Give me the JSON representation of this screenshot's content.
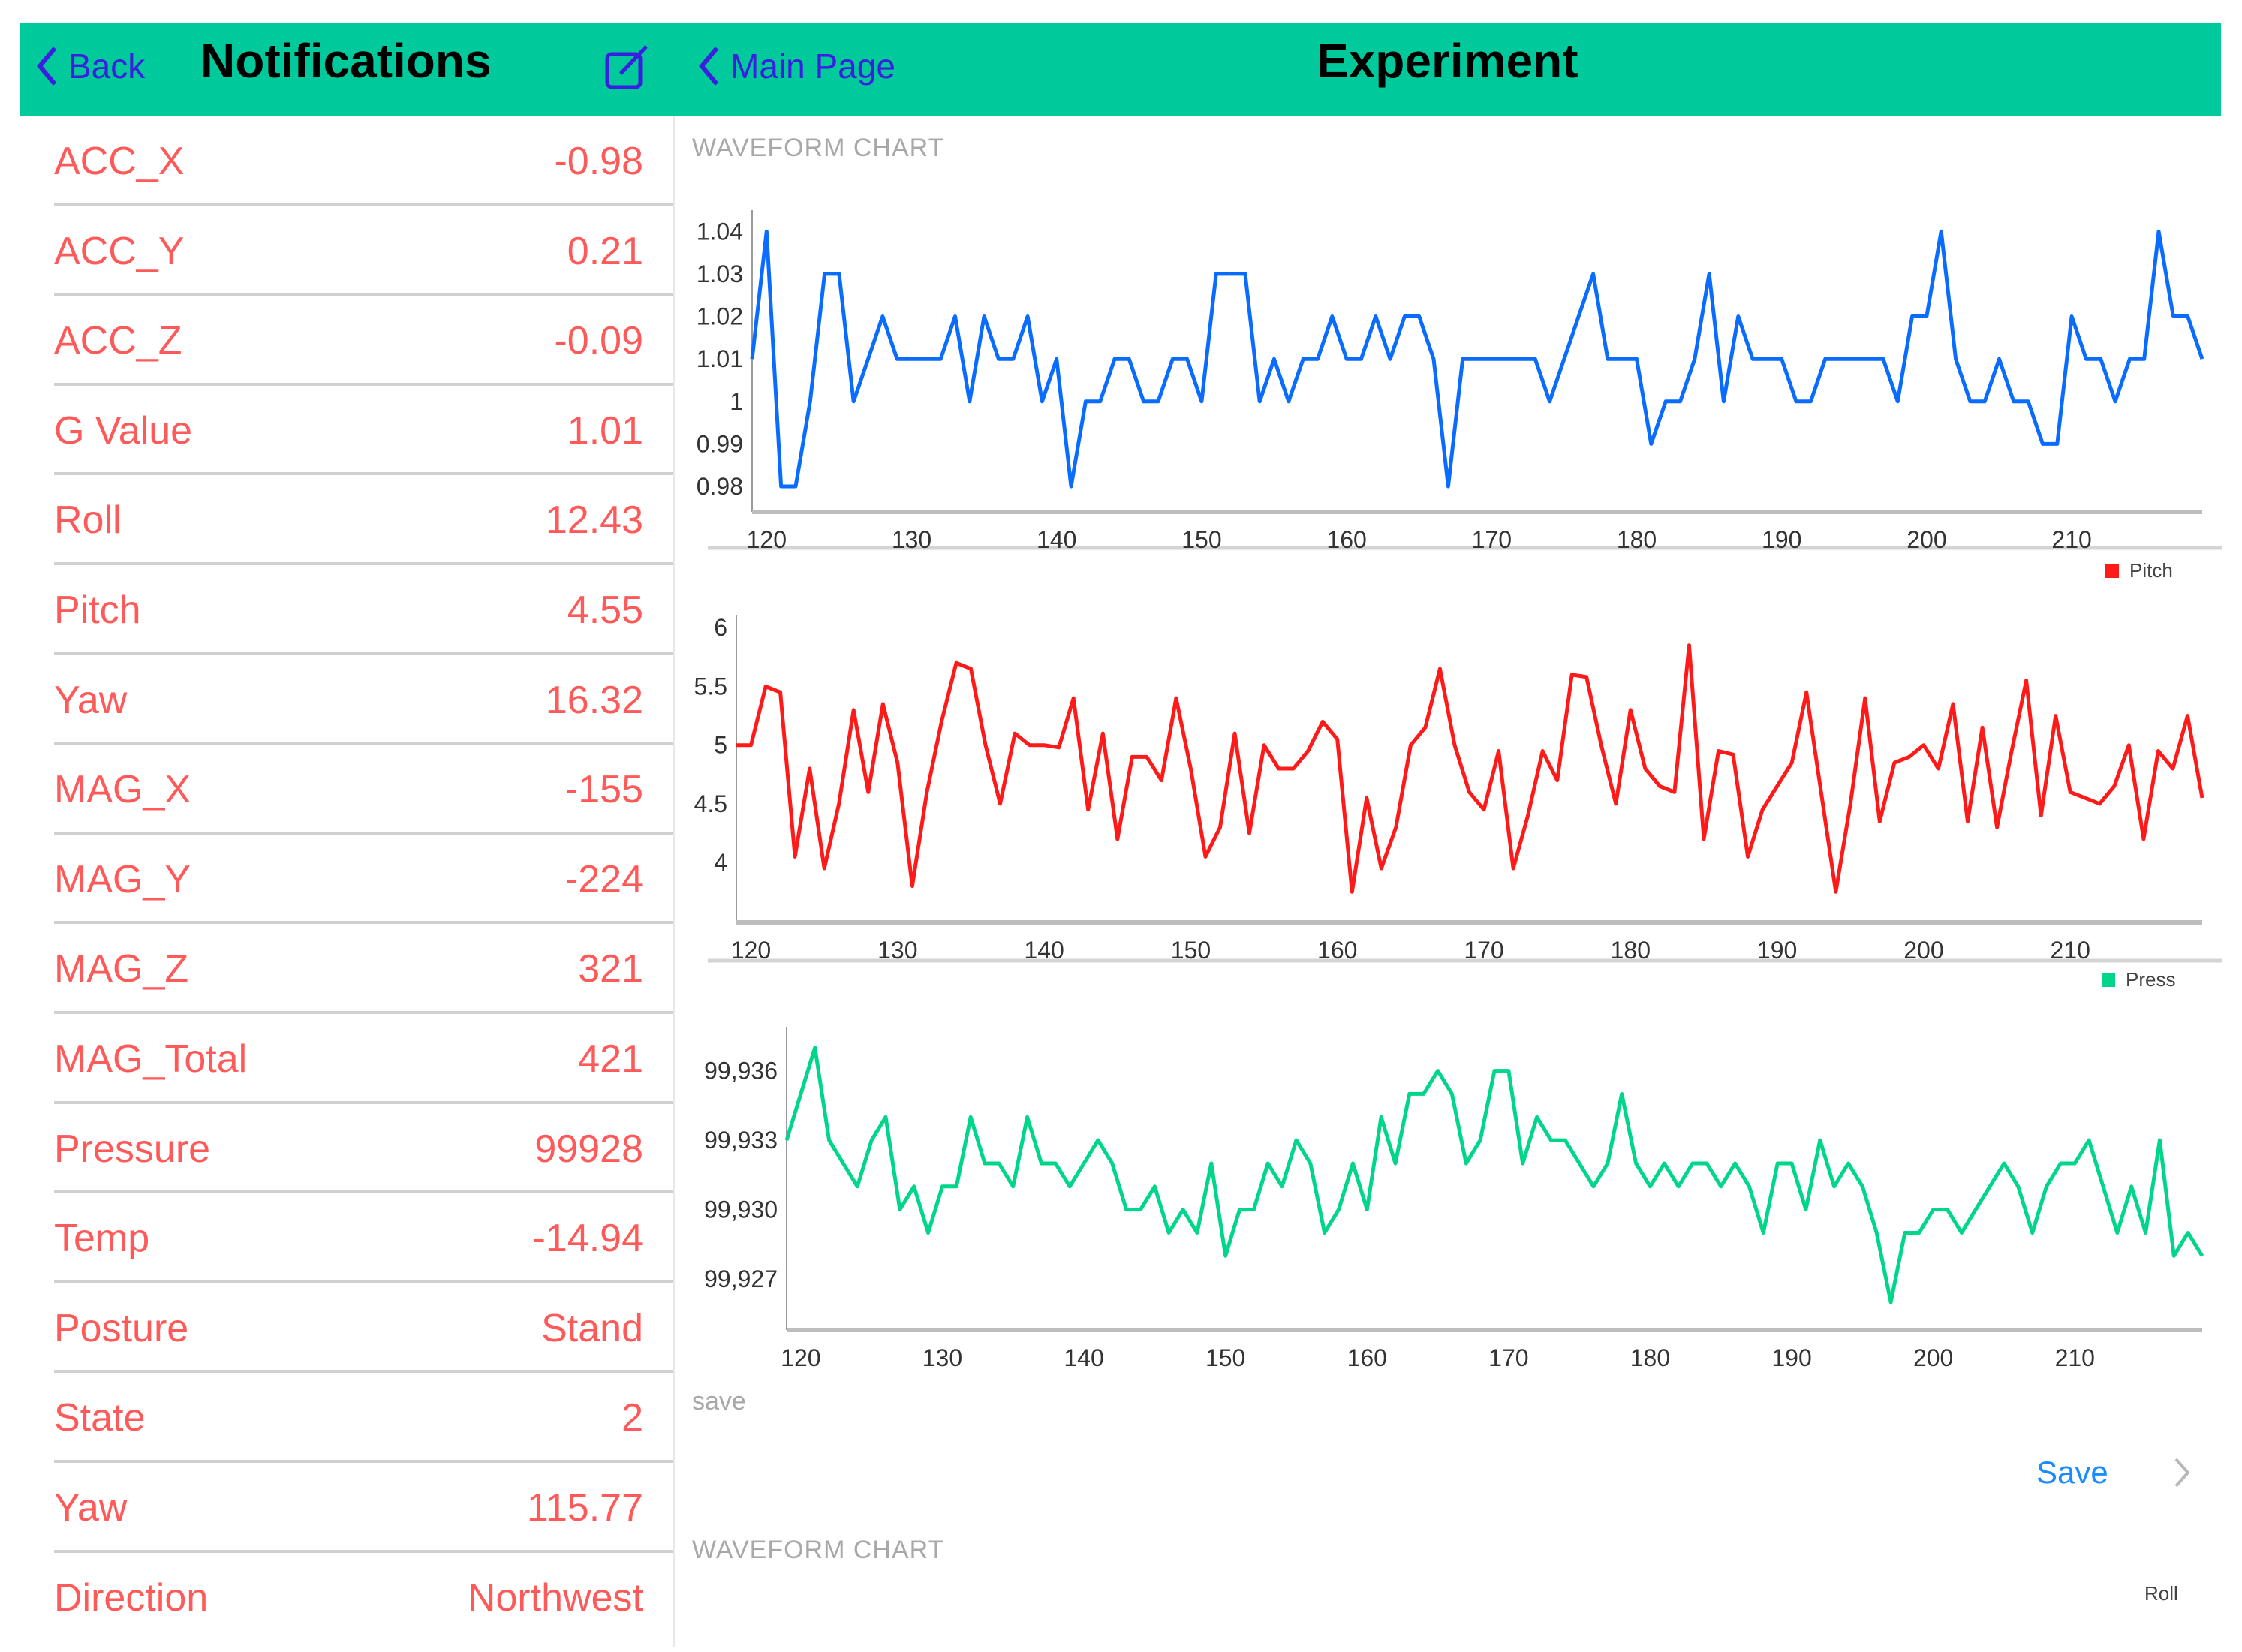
{
  "left_header": {
    "back_label": "Back",
    "title": "Notifications",
    "compose_icon": "compose-icon"
  },
  "right_header": {
    "back_label": "Main Page",
    "title": "Experiment"
  },
  "colors": {
    "header": "#00c99b",
    "nav_link": "#3a1fe0",
    "row_text": "#ff5a5a",
    "save_link": "#1a8cff"
  },
  "readings": [
    {
      "label": "ACC_X",
      "value": "-0.98"
    },
    {
      "label": "ACC_Y",
      "value": "0.21"
    },
    {
      "label": "ACC_Z",
      "value": "-0.09"
    },
    {
      "label": "G Value",
      "value": "1.01"
    },
    {
      "label": "Roll",
      "value": "12.43"
    },
    {
      "label": "Pitch",
      "value": "4.55"
    },
    {
      "label": "Yaw",
      "value": "16.32"
    },
    {
      "label": "MAG_X",
      "value": "-155"
    },
    {
      "label": "MAG_Y",
      "value": "-224"
    },
    {
      "label": "MAG_Z",
      "value": "321"
    },
    {
      "label": "MAG_Total",
      "value": "421"
    },
    {
      "label": "Pressure",
      "value": "99928"
    },
    {
      "label": "Temp",
      "value": "-14.94"
    },
    {
      "label": "Posture",
      "value": "Stand"
    },
    {
      "label": "State",
      "value": "2"
    },
    {
      "label": "Yaw",
      "value": "115.77"
    },
    {
      "label": "Direction",
      "value": "Northwest"
    }
  ],
  "sections": {
    "waveform_1": "WAVEFORM CHART",
    "save_header": "save",
    "save_button": "Save",
    "waveform_2": "WAVEFORM CHART"
  },
  "legends": {
    "pitch": "Pitch",
    "press": "Press",
    "roll": "Roll"
  },
  "chart_data": [
    {
      "type": "line",
      "color": "#0a6cff",
      "xlim": [
        119,
        219
      ],
      "ylim": [
        0.974,
        1.045
      ],
      "grid": false,
      "x_start": 119,
      "xticks": [
        120,
        130,
        140,
        150,
        160,
        170,
        180,
        190,
        200,
        210
      ],
      "xtick_labels": [
        "120",
        "130",
        "140",
        "150",
        "160",
        "170",
        "180",
        "190",
        "200",
        "210"
      ],
      "yticks": [
        1.04,
        1.03,
        1.02,
        1.01,
        1.0,
        0.99,
        0.98
      ],
      "ytick_labels": [
        "1.04",
        "1.03",
        "1.02",
        "1.01",
        "1",
        "0.99",
        "0.98"
      ],
      "values": [
        1.01,
        1.04,
        0.98,
        0.98,
        1.0,
        1.03,
        1.03,
        1.0,
        1.01,
        1.02,
        1.01,
        1.01,
        1.01,
        1.01,
        1.02,
        1.0,
        1.02,
        1.01,
        1.01,
        1.02,
        1.0,
        1.01,
        0.98,
        1.0,
        1.0,
        1.01,
        1.01,
        1.0,
        1.0,
        1.01,
        1.01,
        1.0,
        1.03,
        1.03,
        1.03,
        1.0,
        1.01,
        1.0,
        1.01,
        1.01,
        1.02,
        1.01,
        1.01,
        1.02,
        1.01,
        1.02,
        1.02,
        1.01,
        0.98,
        1.01,
        1.01,
        1.01,
        1.01,
        1.01,
        1.01,
        1.0,
        1.01,
        1.02,
        1.03,
        1.01,
        1.01,
        1.01,
        0.99,
        1.0,
        1.0,
        1.01,
        1.03,
        1.0,
        1.02,
        1.01,
        1.01,
        1.01,
        1.0,
        1.0,
        1.01,
        1.01,
        1.01,
        1.01,
        1.01,
        1.0,
        1.02,
        1.02,
        1.04,
        1.01,
        1.0,
        1.0,
        1.01,
        1.0,
        1.0,
        0.99,
        0.99,
        1.02,
        1.01,
        1.01,
        1.0,
        1.01,
        1.01,
        1.04,
        1.02,
        1.02,
        1.01
      ]
    },
    {
      "type": "line",
      "name": "Pitch",
      "color": "#ff1a1a",
      "xlim": [
        119,
        219
      ],
      "ylim": [
        3.49,
        6.11
      ],
      "grid": false,
      "legend": "top-right",
      "x_start": 119,
      "xticks": [
        120,
        130,
        140,
        150,
        160,
        170,
        180,
        190,
        200,
        210
      ],
      "xtick_labels": [
        "120",
        "130",
        "140",
        "150",
        "160",
        "170",
        "180",
        "190",
        "200",
        "210"
      ],
      "yticks": [
        6,
        5.5,
        5,
        4.5,
        4
      ],
      "ytick_labels": [
        "6",
        "5.5",
        "5",
        "4.5",
        "4"
      ],
      "values": [
        5.0,
        5.0,
        5.5,
        5.45,
        4.05,
        4.8,
        3.95,
        4.5,
        5.3,
        4.6,
        5.35,
        4.85,
        3.8,
        4.6,
        5.2,
        5.7,
        5.65,
        5.0,
        4.5,
        5.1,
        5.0,
        5.0,
        4.98,
        5.4,
        4.45,
        5.1,
        4.2,
        4.9,
        4.9,
        4.7,
        5.4,
        4.8,
        4.05,
        4.3,
        5.1,
        4.25,
        5.0,
        4.8,
        4.8,
        4.95,
        5.2,
        5.05,
        3.75,
        4.55,
        3.95,
        4.3,
        5.0,
        5.15,
        5.65,
        5.0,
        4.6,
        4.45,
        4.95,
        3.95,
        4.4,
        4.95,
        4.7,
        5.6,
        5.58,
        5.0,
        4.5,
        5.3,
        4.8,
        4.65,
        4.6,
        5.85,
        4.2,
        4.95,
        4.92,
        4.05,
        4.45,
        4.65,
        4.85,
        5.45,
        4.6,
        3.75,
        4.5,
        5.4,
        4.35,
        4.85,
        4.9,
        5.0,
        4.8,
        5.35,
        4.35,
        5.15,
        4.3,
        4.95,
        5.55,
        4.4,
        5.25,
        4.6,
        4.55,
        4.5,
        4.65,
        5.0,
        4.2,
        4.95,
        4.8,
        5.25,
        4.55
      ]
    },
    {
      "type": "line",
      "name": "Press",
      "color": "#00d68a",
      "xlim": [
        119,
        219
      ],
      "ylim": [
        99924.8,
        99937.9
      ],
      "grid": false,
      "legend": "top-right",
      "x_start": 119,
      "xticks": [
        120,
        130,
        140,
        150,
        160,
        170,
        180,
        190,
        200,
        210
      ],
      "xtick_labels": [
        "120",
        "130",
        "140",
        "150",
        "160",
        "170",
        "180",
        "190",
        "200",
        "210"
      ],
      "yticks": [
        99936,
        99933,
        99930,
        99927
      ],
      "ytick_labels": [
        "99,936",
        "99,933",
        "99,930",
        "99,927"
      ],
      "values": [
        99933,
        99935,
        99937,
        99933,
        99932,
        99931,
        99933,
        99934,
        99930,
        99931,
        99929,
        99931,
        99931,
        99934,
        99932,
        99932,
        99931,
        99934,
        99932,
        99932,
        99931,
        99932,
        99933,
        99932,
        99930,
        99930,
        99931,
        99929,
        99930,
        99929,
        99932,
        99928,
        99930,
        99930,
        99932,
        99931,
        99933,
        99932,
        99929,
        99930,
        99932,
        99930,
        99934,
        99932,
        99935,
        99935,
        99936,
        99935,
        99932,
        99933,
        99936,
        99936,
        99932,
        99934,
        99933,
        99933,
        99932,
        99931,
        99932,
        99935,
        99932,
        99931,
        99932,
        99931,
        99932,
        99932,
        99931,
        99932,
        99931,
        99929,
        99932,
        99932,
        99930,
        99933,
        99931,
        99932,
        99931,
        99929,
        99926,
        99929,
        99929,
        99930,
        99930,
        99929,
        99930,
        99931,
        99932,
        99931,
        99929,
        99931,
        99932,
        99932,
        99933,
        99931,
        99929,
        99931,
        99929,
        99933,
        99928,
        99929,
        99928
      ]
    }
  ]
}
